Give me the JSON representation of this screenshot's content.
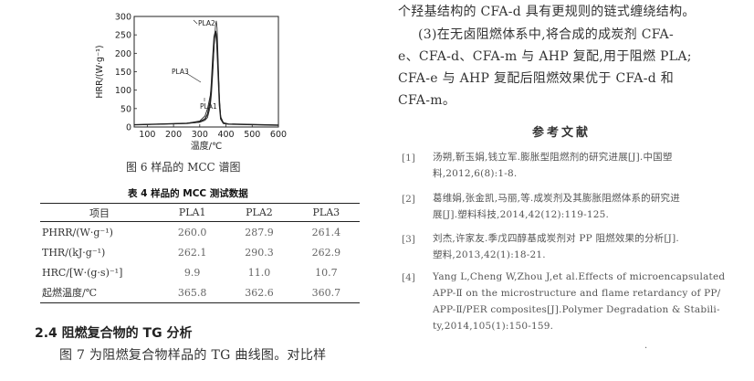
{
  "figure6": {
    "caption": "图 6   样品的 MCC 谱图",
    "chart_data": {
      "type": "line",
      "xlabel": "温度/℃",
      "ylabel": "HRR/(W·g⁻¹)",
      "xlim": [
        50,
        600
      ],
      "ylim": [
        0,
        300
      ],
      "xticks": [
        "100",
        "200",
        "300",
        "400",
        "500",
        "600"
      ],
      "yticks": [
        "0",
        "50",
        "100",
        "150",
        "200",
        "250",
        "300"
      ],
      "series": [
        {
          "name": "PLA1",
          "x": [
            50,
            150,
            250,
            300,
            320,
            330,
            340,
            345,
            350,
            355,
            360,
            365,
            370,
            375,
            380,
            390,
            410,
            600
          ],
          "y": [
            6,
            8,
            10,
            14,
            22,
            35,
            70,
            120,
            190,
            245,
            260,
            230,
            150,
            60,
            22,
            10,
            8,
            5
          ]
        },
        {
          "name": "PLA2",
          "x": [
            50,
            150,
            250,
            300,
            320,
            330,
            340,
            345,
            350,
            355,
            360,
            363,
            366,
            370,
            375,
            380,
            390,
            410,
            600
          ],
          "y": [
            6,
            8,
            10,
            13,
            18,
            26,
            55,
            90,
            150,
            220,
            275,
            288,
            270,
            190,
            80,
            28,
            12,
            8,
            5
          ]
        },
        {
          "name": "PLA3",
          "x": [
            50,
            150,
            250,
            300,
            320,
            330,
            340,
            345,
            350,
            355,
            358,
            361,
            365,
            370,
            375,
            380,
            390,
            410,
            600
          ],
          "y": [
            6,
            8,
            10,
            16,
            30,
            50,
            85,
            110,
            160,
            225,
            255,
            261,
            245,
            170,
            70,
            25,
            12,
            8,
            5
          ]
        }
      ]
    }
  },
  "table4": {
    "title": "表 4   样品的 MCC 测试数据",
    "headers": [
      "项目",
      "PLA1",
      "PLA2",
      "PLA3"
    ],
    "rows": [
      [
        "PHRR/(W·g⁻¹)",
        "260.0",
        "287.9",
        "261.4"
      ],
      [
        "THR/(kJ·g⁻¹)",
        "262.1",
        "290.3",
        "262.9"
      ],
      [
        "HRC/[W·(g·s)⁻¹]",
        "9.9",
        "11.0",
        "10.7"
      ],
      [
        "起燃温度/℃",
        "365.8",
        "362.6",
        "360.7"
      ]
    ]
  },
  "section": {
    "heading": "2.4   阻燃复合物的 TG 分析",
    "line1": "图 7 为阻燃复合物样品的 TG 曲线图。对比样"
  },
  "right": {
    "line0": "个羟基结构的 CFA-d 具有更规则的链式缠绕结构。",
    "line1": "(3)在无卤阻燃体系中,将合成的成炭剂 CFA-",
    "line2": "e、CFA-d、CFA-m 与 AHP 复配,用于阻燃 PLA;",
    "line3": "CFA-e 与 AHP 复配后阻燃效果优于 CFA-d 和",
    "line4": "CFA-m。",
    "ref_heading": "参考文献",
    "refs": [
      {
        "num": "[1]",
        "l1": "汤朔,靳玉娟,钱立军.膨胀型阻燃剂的研究进展[J].中国塑",
        "l2": "料,2012,6(8):1-8."
      },
      {
        "num": "[2]",
        "l1": "葛维娟,张金凯,马丽,等.成炭剂及其膨胀阻燃体系的研究进",
        "l2": "展[J].塑料科技,2014,42(12):119-125."
      },
      {
        "num": "[3]",
        "l1": "刘杰,许家友.季戊四醇基成炭剂对 PP 阻燃效果的分析[J].",
        "l2": "塑料,2013,42(1):18-21."
      },
      {
        "num": "[4]",
        "l1": "Yang L,Cheng W,Zhou J,et al.Effects of microencapsulated",
        "l2": "APP-Ⅱ on the microstructure and flame retardancy of PP/",
        "l3": "APP-Ⅱ/PER composites[J].Polymer Degradation & Stabili-",
        "l4": "ty,2014,105(1):150-159."
      }
    ]
  }
}
